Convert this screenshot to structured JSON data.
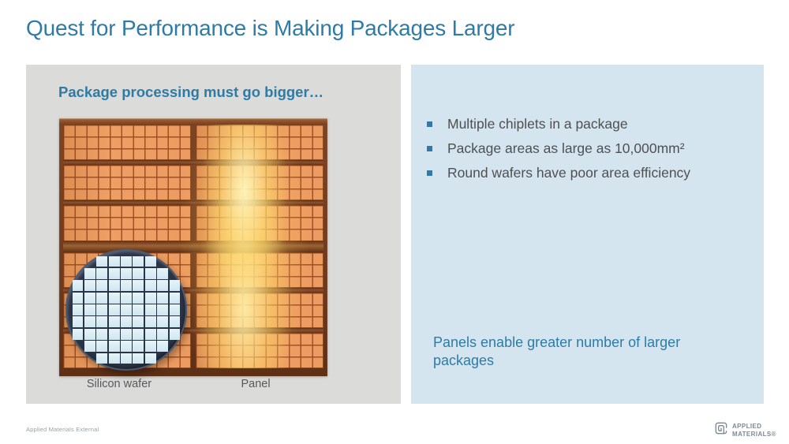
{
  "slide": {
    "title": "Quest for Performance is Making Packages Larger",
    "footer_classification": "Applied Materials External"
  },
  "left_panel": {
    "heading": "Package processing must go bigger…",
    "wafer_label": "Silicon wafer",
    "panel_label": "Panel"
  },
  "right_panel": {
    "bullets": [
      "Multiple chiplets in a package",
      "Package areas as large as 10,000mm²",
      "Round wafers have poor area efficiency"
    ],
    "note": "Panels enable greater number of larger packages"
  },
  "logo": {
    "line1": "APPLIED",
    "line2": "MATERIALS®"
  },
  "colors": {
    "accent_blue": "#2e7ba6",
    "panel_gray": "#dbdbd9",
    "panel_blue": "#d4e5f0",
    "cell_orange": "#ec9c60",
    "glow_yellow": "#ffe98d",
    "frame_brown": "#7b4425",
    "wafer_navy": "#2b3446",
    "die_blue": "#d9edf4",
    "body_text": "#4f5052"
  }
}
